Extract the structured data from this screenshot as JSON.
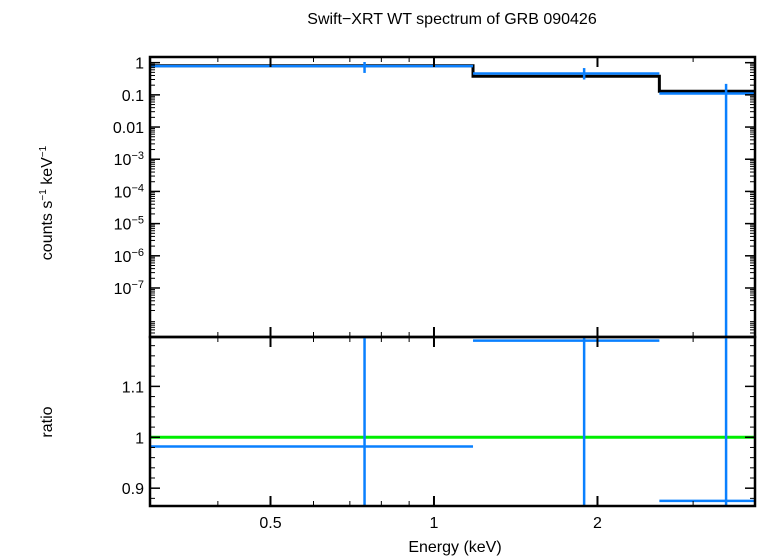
{
  "chart_data": [
    {
      "type": "line",
      "panel": "spectrum",
      "title": "Swift−XRT WT spectrum of GRB 090426",
      "ylabel": {
        "pre": "counts s",
        "sup1": "−1",
        "mid": " keV",
        "sup2": "−1"
      },
      "xlabel": "",
      "x_scale": "log",
      "y_scale": "log",
      "xlim": [
        0.3,
        3.9
      ],
      "ylim": [
        3e-09,
        1.5
      ],
      "y_ticks": [
        {
          "value": 1,
          "label": "1"
        },
        {
          "value": 0.1,
          "label": "0.1"
        },
        {
          "value": 0.01,
          "label": "0.01"
        },
        {
          "value": 0.001,
          "base": "10",
          "exp": "−3"
        },
        {
          "value": 0.0001,
          "base": "10",
          "exp": "−4"
        },
        {
          "value": 1e-05,
          "base": "10",
          "exp": "−5"
        },
        {
          "value": 1e-06,
          "base": "10",
          "exp": "−6"
        },
        {
          "value": 1e-07,
          "base": "10",
          "exp": "−7"
        }
      ],
      "series": [
        {
          "kind": "data",
          "color": "#0a80ff",
          "points": [
            {
              "x": 0.745,
              "xlo": 0.3,
              "xhi": 1.18,
              "y": 0.78,
              "ylo": 0.48,
              "yhi": 1.05
            },
            {
              "x": 1.89,
              "xlo": 1.18,
              "xhi": 2.6,
              "y": 0.46,
              "ylo": 0.3,
              "yhi": 0.68
            },
            {
              "x": 3.45,
              "xlo": 2.6,
              "xhi": 3.9,
              "y": 0.11,
              "ylo": 3e-09,
              "yhi": 0.22
            }
          ]
        },
        {
          "kind": "model",
          "color": "#000000",
          "steps": [
            {
              "xlo": 0.3,
              "xhi": 1.18,
              "y": 0.8
            },
            {
              "xlo": 1.18,
              "xhi": 2.6,
              "y": 0.38
            },
            {
              "xlo": 2.6,
              "xhi": 3.9,
              "y": 0.13
            }
          ]
        }
      ]
    },
    {
      "type": "line",
      "panel": "ratio",
      "title": "",
      "ylabel": "ratio",
      "xlabel": "Energy (keV)",
      "x_scale": "log",
      "y_scale": "linear",
      "xlim": [
        0.3,
        3.9
      ],
      "ylim": [
        0.865,
        1.197
      ],
      "x_ticks": [
        {
          "value": 0.5,
          "label": "0.5"
        },
        {
          "value": 1,
          "label": "1"
        },
        {
          "value": 2,
          "label": "2"
        }
      ],
      "y_ticks": [
        {
          "value": 0.9,
          "label": "0.9"
        },
        {
          "value": 1.0,
          "label": "1"
        },
        {
          "value": 1.1,
          "label": "1.1"
        }
      ],
      "reference_line": {
        "y": 1.0,
        "color": "#00ee00"
      },
      "series": [
        {
          "kind": "data",
          "color": "#0a80ff",
          "points": [
            {
              "x": 0.745,
              "xlo": 0.3,
              "xhi": 1.18,
              "y": 0.982,
              "ylo": 0.865,
              "yhi": 1.197
            },
            {
              "x": 1.89,
              "xlo": 1.18,
              "xhi": 2.6,
              "y": 1.19,
              "ylo": 0.865,
              "yhi": 1.197
            },
            {
              "x": 3.45,
              "xlo": 2.6,
              "xhi": 3.9,
              "y": 0.875,
              "ylo": 0.865,
              "yhi": 1.197
            }
          ]
        }
      ]
    }
  ]
}
